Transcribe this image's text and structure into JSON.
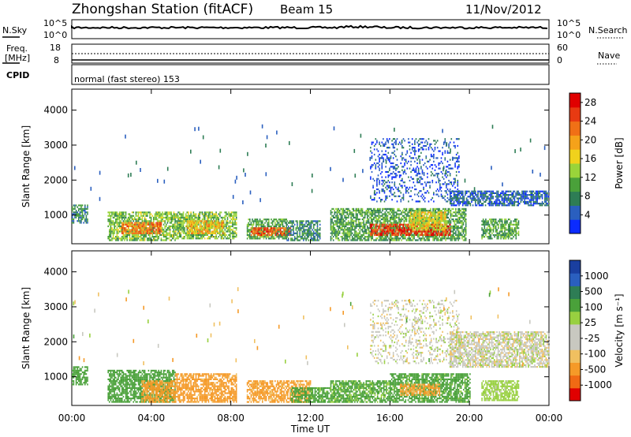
{
  "header": {
    "station": "Zhongshan Station (fitACF)",
    "beam": "Beam 15",
    "date": "11/Nov/2012"
  },
  "strip": {
    "nsky_label": "N.Sky",
    "nsky_ticks": [
      "10^5",
      "10^0"
    ],
    "nsearch_label": "N.Search",
    "nsearch_ticks": [
      "10^5",
      "10^0"
    ],
    "freq_label_1": "Freq.",
    "freq_label_2": "[MHz]",
    "freq_ticks": [
      "18",
      "8"
    ],
    "nave_label": "Nave",
    "nave_ticks": [
      "60",
      "0"
    ],
    "cpid_label": "CPID",
    "cpid_text": "normal (fast stereo) 153"
  },
  "colors": {
    "power_scale": [
      "#0b2bff",
      "#2a5fbf",
      "#2e7d55",
      "#4aa13a",
      "#99d43a",
      "#f0d21c",
      "#f5a21a",
      "#f07016",
      "#e83a12",
      "#e00000"
    ],
    "velocity_scale": [
      "#e00000",
      "#f06a14",
      "#f59a28",
      "#f0c060",
      "#c8c8c0",
      "#c8c8c0",
      "#98d040",
      "#4aa13a",
      "#2e7d55",
      "#2a5fbf",
      "#1a3fa0"
    ]
  },
  "chart_data": [
    {
      "type": "heatmap",
      "title": "",
      "xlabel": "",
      "ylabel": "Slant Range [km]",
      "x_ticks": [
        "00:00",
        "04:00",
        "08:00",
        "12:00",
        "16:00",
        "20:00",
        "00:00"
      ],
      "y_ticks": [
        "1000",
        "2000",
        "3000",
        "4000"
      ],
      "xlim_hours": [
        0,
        24
      ],
      "ylim_km": [
        180,
        4600
      ],
      "colorbar": {
        "label": "Power [dB]",
        "ticks": [
          "4",
          "8",
          "12",
          "16",
          "20",
          "24",
          "28"
        ],
        "range": [
          0,
          30
        ]
      },
      "echo_regions": [
        {
          "x": [
            0.0,
            0.8
          ],
          "y": [
            800,
            1300
          ],
          "value": 8
        },
        {
          "x": [
            1.8,
            5.2
          ],
          "y": [
            300,
            1100
          ],
          "value": 12
        },
        {
          "x": [
            2.5,
            4.5
          ],
          "y": [
            500,
            800
          ],
          "value": 22
        },
        {
          "x": [
            5.2,
            8.3
          ],
          "y": [
            350,
            1100
          ],
          "value": 12
        },
        {
          "x": [
            5.8,
            7.6
          ],
          "y": [
            500,
            850
          ],
          "value": 18
        },
        {
          "x": [
            8.8,
            10.8
          ],
          "y": [
            350,
            900
          ],
          "value": 10
        },
        {
          "x": [
            9.0,
            11.0
          ],
          "y": [
            450,
            650
          ],
          "value": 24
        },
        {
          "x": [
            10.8,
            12.5
          ],
          "y": [
            300,
            850
          ],
          "value": 8
        },
        {
          "x": [
            13.0,
            19.8
          ],
          "y": [
            300,
            1200
          ],
          "value": 10
        },
        {
          "x": [
            15.0,
            19.0
          ],
          "y": [
            450,
            750
          ],
          "value": 26
        },
        {
          "x": [
            17.0,
            18.8
          ],
          "y": [
            600,
            1100
          ],
          "value": 16
        },
        {
          "x": [
            15.0,
            19.5
          ],
          "y": [
            1400,
            3200
          ],
          "value": 4
        },
        {
          "x": [
            19.0,
            24.0
          ],
          "y": [
            1300,
            1700
          ],
          "value": 5
        },
        {
          "x": [
            20.6,
            22.5
          ],
          "y": [
            350,
            900
          ],
          "value": 10
        }
      ]
    },
    {
      "type": "heatmap",
      "title": "",
      "xlabel": "Time UT",
      "ylabel": "Slant Range [km]",
      "x_ticks": [
        "00:00",
        "04:00",
        "08:00",
        "12:00",
        "16:00",
        "20:00",
        "00:00"
      ],
      "y_ticks": [
        "1000",
        "2000",
        "3000",
        "4000"
      ],
      "xlim_hours": [
        0,
        24
      ],
      "ylim_km": [
        180,
        4600
      ],
      "colorbar": {
        "label": "Velocity [m s⁻¹]",
        "ticks": [
          "1000",
          "500",
          "100",
          "25",
          "-25",
          "-100",
          "-500",
          "-1000"
        ]
      },
      "echo_regions": [
        {
          "x": [
            0.0,
            0.8
          ],
          "y": [
            800,
            1300
          ],
          "value": 300
        },
        {
          "x": [
            1.8,
            5.2
          ],
          "y": [
            300,
            1200
          ],
          "value": 300
        },
        {
          "x": [
            3.5,
            5.2
          ],
          "y": [
            300,
            900
          ],
          "value": -200
        },
        {
          "x": [
            5.2,
            8.3
          ],
          "y": [
            300,
            1100
          ],
          "value": -200
        },
        {
          "x": [
            8.8,
            12.0
          ],
          "y": [
            300,
            900
          ],
          "value": -150
        },
        {
          "x": [
            11.0,
            13.0
          ],
          "y": [
            300,
            700
          ],
          "value": 200
        },
        {
          "x": [
            13.0,
            16.0
          ],
          "y": [
            300,
            900
          ],
          "value": 150
        },
        {
          "x": [
            16.0,
            20.0
          ],
          "y": [
            300,
            1100
          ],
          "value": 200
        },
        {
          "x": [
            16.5,
            18.5
          ],
          "y": [
            500,
            800
          ],
          "value": -150
        },
        {
          "x": [
            15.0,
            19.5
          ],
          "y": [
            1400,
            3200
          ],
          "value": 0
        },
        {
          "x": [
            19.0,
            24.0
          ],
          "y": [
            1300,
            2300
          ],
          "value": 0
        },
        {
          "x": [
            20.6,
            22.5
          ],
          "y": [
            350,
            900
          ],
          "value": 60
        }
      ]
    }
  ]
}
